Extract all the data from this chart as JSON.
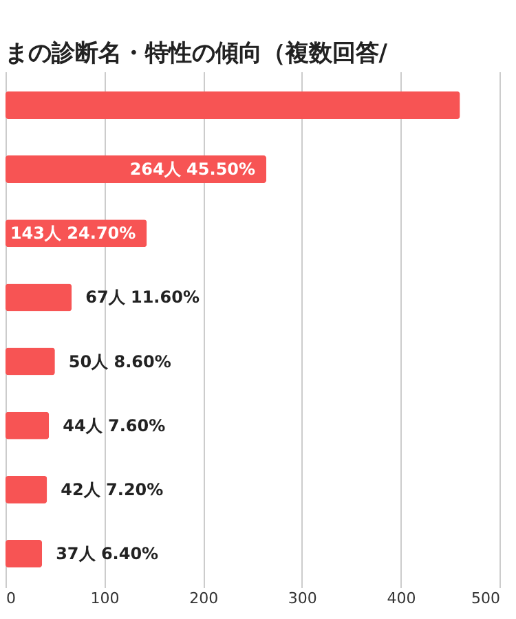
{
  "chart_data": {
    "type": "bar",
    "orientation": "horizontal",
    "title": "まの診断名・特性の傾向（複数回答/",
    "categories": [
      null,
      null,
      null,
      null,
      null,
      null,
      null,
      null
    ],
    "values": [
      460,
      264,
      143,
      67,
      50,
      44,
      42,
      37
    ],
    "value_labels": [
      null,
      "264人  45.50%",
      "143人  24.70%",
      "67人  11.60%",
      "50人  8.60%",
      "44人  7.60%",
      "42人  7.20%",
      "37人  6.40%"
    ],
    "color": "#f75454",
    "xlim": [
      0,
      500
    ],
    "xticks": [
      0,
      100,
      200,
      300,
      400,
      500
    ],
    "grid": "x",
    "tick_labels": "x"
  }
}
